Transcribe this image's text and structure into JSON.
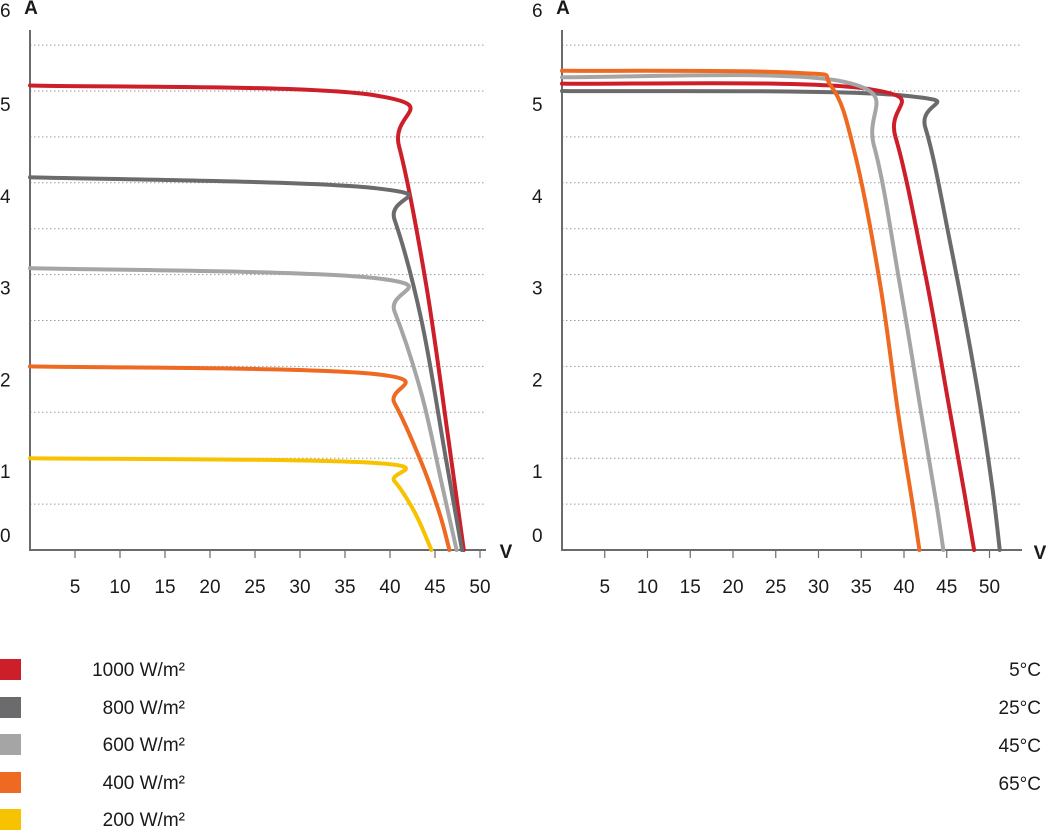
{
  "chart_data": [
    {
      "type": "line",
      "title": "",
      "xlabel": "V",
      "ylabel": "A",
      "xlim": [
        0,
        50
      ],
      "ylim": [
        0,
        6
      ],
      "xticks": [
        "5",
        "10",
        "15",
        "20",
        "25",
        "30",
        "35",
        "40",
        "45",
        "50"
      ],
      "yticks": [
        "0",
        "1",
        "2",
        "3",
        "4",
        "5",
        "6"
      ],
      "grid": "horizontal dotted",
      "legend_position": "bottom-left",
      "series": [
        {
          "name": "1000 W/m²",
          "color": "#cc1f2a",
          "points": [
            [
              0,
              5.06
            ],
            [
              38.5,
              4.95
            ],
            [
              41,
              4.4
            ],
            [
              44,
              2.9
            ],
            [
              46.5,
              1.2
            ],
            [
              48.2,
              0
            ]
          ]
        },
        {
          "name": "800 W/m²",
          "color": "#6b6b6e",
          "points": [
            [
              0,
              4.06
            ],
            [
              38.5,
              3.94
            ],
            [
              40.5,
              3.6
            ],
            [
              43.5,
              2.5
            ],
            [
              46.2,
              1.0
            ],
            [
              48.0,
              0
            ]
          ]
        },
        {
          "name": "600 W/m²",
          "color": "#a5a5a5",
          "points": [
            [
              0,
              3.07
            ],
            [
              38.5,
              2.96
            ],
            [
              40.5,
              2.6
            ],
            [
              43.5,
              1.7
            ],
            [
              45.8,
              0.7
            ],
            [
              47.4,
              0
            ]
          ]
        },
        {
          "name": "400 W/m²",
          "color": "#ee6a23",
          "points": [
            [
              0,
              2.0
            ],
            [
              38,
              1.92
            ],
            [
              40.5,
              1.6
            ],
            [
              43.5,
              0.95
            ],
            [
              45.5,
              0.4
            ],
            [
              46.6,
              0
            ]
          ]
        },
        {
          "name": "200 W/m²",
          "color": "#f7c200",
          "points": [
            [
              0,
              1.0
            ],
            [
              38,
              0.95
            ],
            [
              40.5,
              0.75
            ],
            [
              42.8,
              0.4
            ],
            [
              44.6,
              0
            ]
          ]
        }
      ]
    },
    {
      "type": "line",
      "title": "",
      "xlabel": "V",
      "ylabel": "A",
      "xlim": [
        0,
        50
      ],
      "ylim": [
        0,
        6
      ],
      "xticks": [
        "5",
        "10",
        "15",
        "20",
        "25",
        "30",
        "35",
        "40",
        "45",
        "50"
      ],
      "yticks": [
        "0",
        "1",
        "2",
        "3",
        "4",
        "5",
        "6"
      ],
      "grid": "horizontal dotted",
      "legend_position": "bottom-right",
      "series": [
        {
          "name": "5°C",
          "color": "#6b6b6e",
          "points": [
            [
              0,
              5.0
            ],
            [
              40,
              4.95
            ],
            [
              42.5,
              4.6
            ],
            [
              45.5,
              3.3
            ],
            [
              48.5,
              1.8
            ],
            [
              50.3,
              0.7
            ],
            [
              51.2,
              0
            ]
          ]
        },
        {
          "name": "25°C",
          "color": "#cc1f2a",
          "points": [
            [
              0,
              5.08
            ],
            [
              36,
              5.02
            ],
            [
              39,
              4.5
            ],
            [
              42.5,
              3.0
            ],
            [
              45.2,
              1.6
            ],
            [
              47.1,
              0.6
            ],
            [
              48.2,
              0
            ]
          ]
        },
        {
          "name": "45°C",
          "color": "#a5a5a5",
          "points": [
            [
              0,
              5.15
            ],
            [
              33,
              5.1
            ],
            [
              36.5,
              4.4
            ],
            [
              39.5,
              2.9
            ],
            [
              42,
              1.5
            ],
            [
              43.8,
              0.5
            ],
            [
              44.6,
              0
            ]
          ]
        },
        {
          "name": "65°C",
          "color": "#ee6a23",
          "points": [
            [
              0,
              5.22
            ],
            [
              27,
              5.2
            ],
            [
              31.5,
              5.05
            ],
            [
              34.3,
              4.3
            ],
            [
              37.2,
              2.9
            ],
            [
              39.3,
              1.5
            ],
            [
              41,
              0.5
            ],
            [
              41.8,
              0
            ]
          ]
        }
      ]
    }
  ]
}
